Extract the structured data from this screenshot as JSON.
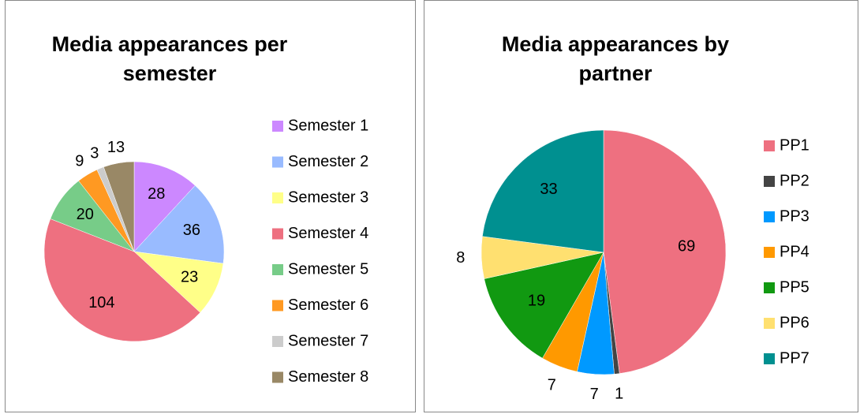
{
  "chart_data": [
    {
      "type": "pie",
      "title": "Media appearances per semester",
      "categories": [
        "Semester 1",
        "Semester 2",
        "Semester 3",
        "Semester 4",
        "Semester 5",
        "Semester 6",
        "Semester 7",
        "Semester 8"
      ],
      "values": [
        28,
        36,
        23,
        104,
        20,
        9,
        3,
        13
      ],
      "colors": [
        "#cc88ff",
        "#99bbff",
        "#ffff88",
        "#ee7080",
        "#77cc88",
        "#ff9922",
        "#cccccc",
        "#998866"
      ],
      "legend": "right"
    },
    {
      "type": "pie",
      "title": "Media appearances by partner",
      "categories": [
        "PP1",
        "PP2",
        "PP3",
        "PP4",
        "PP5",
        "PP6",
        "PP7"
      ],
      "values": [
        69,
        1,
        7,
        7,
        19,
        8,
        33
      ],
      "colors": [
        "#ee7080",
        "#444444",
        "#0099ff",
        "#ff9900",
        "#119911",
        "#ffe070",
        "#009090"
      ],
      "legend": "right"
    }
  ]
}
